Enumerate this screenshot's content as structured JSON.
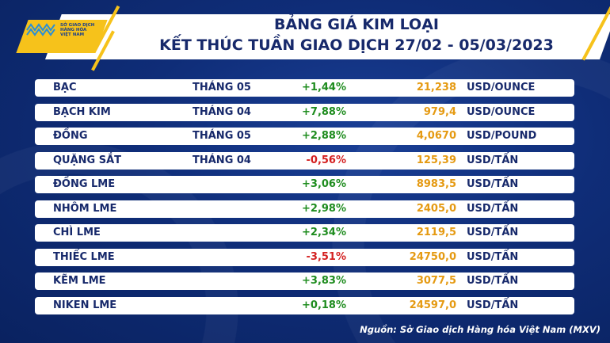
{
  "logo": {
    "line1": "SỞ GIAO DỊCH",
    "line2": "HÀNG HÓA",
    "line3": "VIỆT NAM"
  },
  "header": {
    "title": "BẢNG GIÁ KIM LOẠI",
    "subtitle": "KẾT THÚC TUẦN GIAO DỊCH 27/02 - 05/03/2023"
  },
  "colors": {
    "up": "#1e8c1e",
    "down": "#d42020",
    "price": "#e59a12",
    "navy": "#17296b",
    "accent": "#f6c21b"
  },
  "rows": [
    {
      "name": "BẠC",
      "month": "THÁNG 05",
      "change": "+1,44%",
      "price": "21,238",
      "unit": "USD/OUNCE"
    },
    {
      "name": "BẠCH KIM",
      "month": "THÁNG 04",
      "change": "+7,88%",
      "price": "979,4",
      "unit": "USD/OUNCE"
    },
    {
      "name": "ĐỒNG",
      "month": "THÁNG 05",
      "change": "+2,88%",
      "price": "4,0670",
      "unit": "USD/POUND"
    },
    {
      "name": "QUẶNG SẮT",
      "month": "THÁNG 04",
      "change": "-0,56%",
      "price": "125,39",
      "unit": "USD/TẤN"
    },
    {
      "name": "ĐỒNG LME",
      "month": "",
      "change": "+3,06%",
      "price": "8983,5",
      "unit": "USD/TẤN"
    },
    {
      "name": "NHÔM LME",
      "month": "",
      "change": "+2,98%",
      "price": "2405,0",
      "unit": "USD/TẤN"
    },
    {
      "name": "CHÌ LME",
      "month": "",
      "change": "+2,34%",
      "price": "2119,5",
      "unit": "USD/TẤN"
    },
    {
      "name": "THIẾC LME",
      "month": "",
      "change": "-3,51%",
      "price": "24750,0",
      "unit": "USD/TẤN"
    },
    {
      "name": "KẼM LME",
      "month": "",
      "change": "+3,83%",
      "price": "3077,5",
      "unit": "USD/TẤN"
    },
    {
      "name": "NIKEN LME",
      "month": "",
      "change": "+0,18%",
      "price": "24597,0",
      "unit": "USD/TẤN"
    }
  ],
  "source": "Nguồn: Sở Giao dịch Hàng hóa Việt Nam (MXV)"
}
